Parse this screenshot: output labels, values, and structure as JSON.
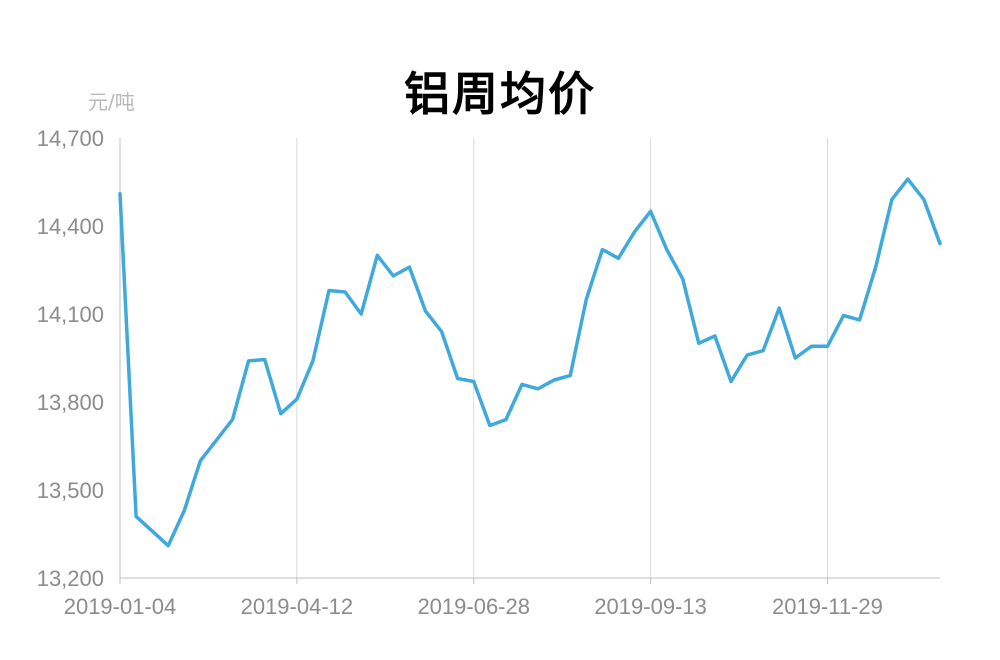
{
  "chart_data": {
    "type": "line",
    "title": "铝周均价",
    "ylabel": "元/吨",
    "xlabel": "",
    "ylim": [
      13200,
      14700
    ],
    "yticks": [
      13200,
      13500,
      13800,
      14100,
      14400,
      14700
    ],
    "ytick_labels": [
      "13,200",
      "13,500",
      "13,800",
      "14,100",
      "14,400",
      "14,700"
    ],
    "xtick_labels": [
      "2019-01-04",
      "2019-04-12",
      "2019-06-28",
      "2019-09-13",
      "2019-11-29"
    ],
    "xtick_positions": [
      0,
      11,
      22,
      33,
      44
    ],
    "grid": "vertical",
    "colors": {
      "line": "#3fa9dc",
      "grid": "#d9d9d9",
      "axis": "#bfbfbf",
      "text": "#8c8c8c"
    },
    "series": [
      {
        "values": [
          14510,
          13410,
          13360,
          13310,
          13430,
          13600,
          13670,
          13740,
          13940,
          13945,
          13760,
          13810,
          13940,
          14180,
          14175,
          14100,
          14300,
          14230,
          14260,
          14110,
          14040,
          13880,
          13870,
          13720,
          13740,
          13860,
          13845,
          13875,
          13890,
          14150,
          14320,
          14290,
          14380,
          14450,
          14320,
          14220,
          14000,
          14025,
          13870,
          13960,
          13975,
          14120,
          13950,
          13990,
          13990,
          14095,
          14080,
          14260,
          14490,
          14560,
          14490,
          14340
        ]
      }
    ]
  }
}
